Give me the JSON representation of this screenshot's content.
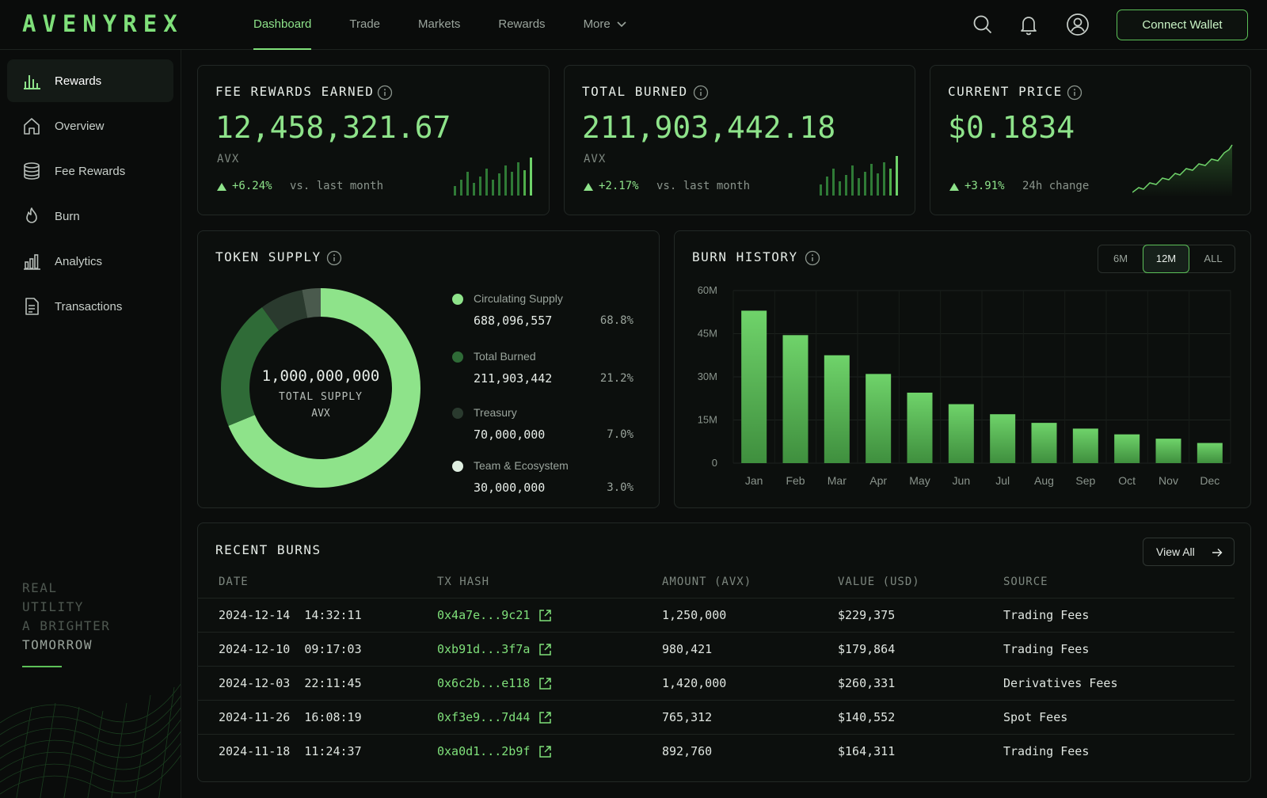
{
  "header": {
    "logo": "AVENYREX",
    "nav": [
      "Dashboard",
      "Trade",
      "Markets",
      "Rewards",
      "More"
    ],
    "connect_label": "Connect Wallet"
  },
  "sidebar": {
    "items": [
      {
        "label": "Rewards",
        "icon": "bar-chart-icon"
      },
      {
        "label": "Overview",
        "icon": "home-icon"
      },
      {
        "label": "Fee Rewards",
        "icon": "coins-stack-icon"
      },
      {
        "label": "Burn",
        "icon": "flame-icon"
      },
      {
        "label": "Analytics",
        "icon": "analytics-icon"
      },
      {
        "label": "Transactions",
        "icon": "document-icon"
      }
    ],
    "tagline": [
      "REAL",
      "UTILITY",
      "A BRIGHTER",
      "TOMORROW"
    ]
  },
  "stats": {
    "fee_rewards": {
      "title": "FEE REWARDS EARNED",
      "value": "12,458,321.67",
      "unit": "AVX",
      "delta": "+6.24%",
      "caption": "vs. last month"
    },
    "total_burned": {
      "title": "TOTAL BURNED",
      "value": "211,903,442.18",
      "unit": "AVX",
      "delta": "+2.17%",
      "caption": "vs. last month"
    },
    "price": {
      "title": "CURRENT PRICE",
      "value": "$0.1834",
      "delta": "+3.91%",
      "caption": "24h change"
    }
  },
  "supply": {
    "title": "TOKEN SUPPLY",
    "total": "1,000,000,000",
    "total_label": "TOTAL SUPPLY",
    "unit": "AVX",
    "items": [
      {
        "name": "Circulating Supply",
        "value": "688,096,557",
        "pct": "68.8%",
        "share": 68.8,
        "color": "#8ee38a"
      },
      {
        "name": "Total Burned",
        "value": "211,903,442",
        "pct": "21.2%",
        "share": 21.2,
        "color": "#2f6b37"
      },
      {
        "name": "Treasury",
        "value": "70,000,000",
        "pct": "7.0%",
        "share": 7.0,
        "color": "#2a3a2e"
      },
      {
        "name": "Team & Ecosystem",
        "value": "30,000,000",
        "pct": "3.0%",
        "share": 3.0,
        "color": "#dfeee0"
      }
    ]
  },
  "burn_history": {
    "title": "BURN HISTORY",
    "ranges": [
      "6M",
      "12M",
      "ALL"
    ],
    "active_range": "12M"
  },
  "chart_data": {
    "type": "bar",
    "title": "BURN HISTORY",
    "categories": [
      "Jan",
      "Feb",
      "Mar",
      "Apr",
      "May",
      "Jun",
      "Jul",
      "Aug",
      "Sep",
      "Oct",
      "Nov",
      "Dec"
    ],
    "values": [
      53,
      44.5,
      37.5,
      31,
      24.5,
      20.5,
      17,
      14,
      12,
      10,
      8.5,
      7
    ],
    "y_ticks": [
      "0",
      "15M",
      "30M",
      "45M",
      "60M"
    ],
    "ylim": [
      0,
      60
    ],
    "grid": true
  },
  "recent_burns": {
    "title": "RECENT BURNS",
    "view_all": "View All",
    "columns": [
      "DATE",
      "TX HASH",
      "AMOUNT (AVX)",
      "VALUE (USD)",
      "SOURCE"
    ],
    "rows": [
      {
        "date": "2024-12-14  14:32:11",
        "hash": "0x4a7e...9c21",
        "amount": "1,250,000",
        "value": "$229,375",
        "source": "Trading Fees"
      },
      {
        "date": "2024-12-10  09:17:03",
        "hash": "0xb91d...3f7a",
        "amount": "980,421",
        "value": "$179,864",
        "source": "Trading Fees"
      },
      {
        "date": "2024-12-03  22:11:45",
        "hash": "0x6c2b...e118",
        "amount": "1,420,000",
        "value": "$260,331",
        "source": "Derivatives Fees"
      },
      {
        "date": "2024-11-26  16:08:19",
        "hash": "0xf3e9...7d44",
        "amount": "765,312",
        "value": "$140,552",
        "source": "Spot Fees"
      },
      {
        "date": "2024-11-18  11:24:37",
        "hash": "0xa0d1...2b9f",
        "amount": "892,760",
        "value": "$164,311",
        "source": "Trading Fees"
      }
    ]
  }
}
